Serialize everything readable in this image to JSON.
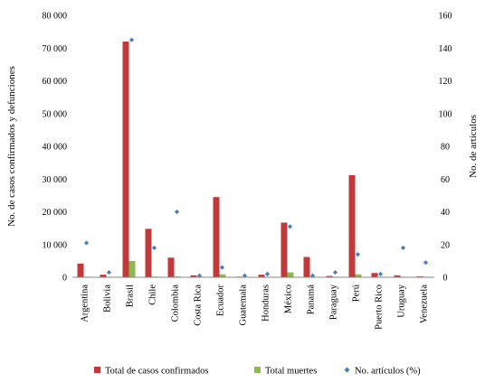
{
  "chart_data": {
    "type": "bar",
    "categories": [
      "Argentina",
      "Bolivia",
      "Brasil",
      "Chile",
      "Colombia",
      "Costa Rica",
      "Ecuador",
      "Guatemala",
      "Honduras",
      "México",
      "Panamá",
      "Paraguay",
      "Perú",
      "Puerto Rico",
      "Uruguay",
      "Venezuela"
    ],
    "series": [
      {
        "name": "Total de casos confirmados",
        "type": "bar",
        "axis": "left",
        "color": "#c0393b",
        "values": [
          4200,
          800,
          72000,
          14800,
          6000,
          600,
          24500,
          200,
          800,
          16700,
          6200,
          400,
          31200,
          1300,
          600,
          300
        ]
      },
      {
        "name": "Total muertes",
        "type": "bar",
        "axis": "left",
        "color": "#8cba51",
        "values": [
          150,
          50,
          5000,
          200,
          250,
          10,
          900,
          10,
          60,
          1500,
          170,
          10,
          900,
          80,
          15,
          10
        ]
      },
      {
        "name": "No. artículos (%)",
        "type": "scatter",
        "axis": "right",
        "color": "#4a7ebb",
        "values": [
          21,
          3,
          145,
          18,
          40,
          1,
          6,
          1,
          2,
          31,
          1,
          3,
          14,
          2,
          18,
          9
        ]
      }
    ],
    "ylabel": "No. de casos confirmados y defunciones",
    "y2label": "No. de artículos",
    "ylim": [
      0,
      80000
    ],
    "y2lim": [
      0,
      160
    ],
    "yticks": [
      "0",
      "10 000",
      "20 000",
      "30 000",
      "40 000",
      "50 000",
      "60 000",
      "70 000",
      "80 000"
    ],
    "y2ticks": [
      "0",
      "20",
      "40",
      "60",
      "80",
      "100",
      "120",
      "140",
      "160"
    ],
    "grid": false,
    "legend": "bottom"
  }
}
